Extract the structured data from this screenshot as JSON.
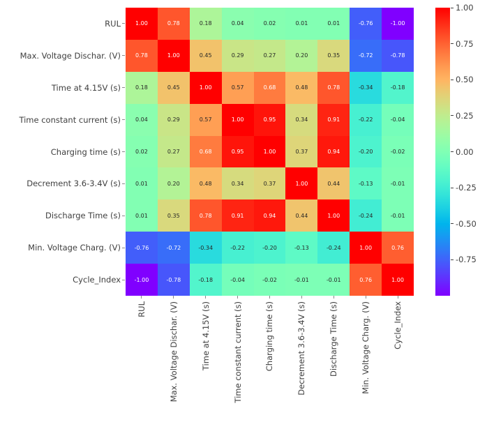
{
  "figure": {
    "background": "#ffffff",
    "label_color": "#404040",
    "tick_color": "#8a8a8a",
    "annot_dark": "#262626",
    "annot_light": "#ffffff"
  },
  "chart_data": {
    "type": "heatmap",
    "title": "",
    "colormap": "rainbow",
    "vmin": -1.0,
    "vmax": 1.0,
    "grid": false,
    "annotations_decimals": 2,
    "labels": [
      "RUL",
      "Max. Voltage Dischar. (V)",
      "Time at 4.15V (s)",
      "Time constant current (s)",
      "Charging time (s)",
      "Decrement 3.6-3.4V (s)",
      "Discharge Time (s)",
      "Min. Voltage Charg. (V)",
      "Cycle_Index"
    ],
    "matrix": [
      [
        1.0,
        0.78,
        0.18,
        0.04,
        0.02,
        0.01,
        0.01,
        -0.76,
        -1.0
      ],
      [
        0.78,
        1.0,
        0.45,
        0.29,
        0.27,
        0.2,
        0.35,
        -0.72,
        -0.78
      ],
      [
        0.18,
        0.45,
        1.0,
        0.57,
        0.68,
        0.48,
        0.78,
        -0.34,
        -0.18
      ],
      [
        0.04,
        0.29,
        0.57,
        1.0,
        0.95,
        0.34,
        0.91,
        -0.22,
        -0.04
      ],
      [
        0.02,
        0.27,
        0.68,
        0.95,
        1.0,
        0.37,
        0.94,
        -0.2,
        -0.02
      ],
      [
        0.01,
        0.2,
        0.48,
        0.34,
        0.37,
        1.0,
        0.44,
        -0.13,
        -0.01
      ],
      [
        0.01,
        0.35,
        0.78,
        0.91,
        0.94,
        0.44,
        1.0,
        -0.24,
        -0.01
      ],
      [
        -0.76,
        -0.72,
        -0.34,
        -0.22,
        -0.2,
        -0.13,
        -0.24,
        1.0,
        0.76
      ],
      [
        -1.0,
        -0.78,
        -0.18,
        -0.04,
        -0.02,
        -0.01,
        -0.01,
        0.76,
        1.0
      ]
    ],
    "colorbar": {
      "position": "right",
      "ticks": [
        1.0,
        0.75,
        0.5,
        0.25,
        0.0,
        -0.25,
        -0.5,
        -0.75
      ],
      "tick_labels": [
        "1.00",
        "0.75",
        "0.50",
        "0.25",
        "0.00",
        "-0.25",
        "-0.50",
        "-0.75"
      ]
    }
  }
}
